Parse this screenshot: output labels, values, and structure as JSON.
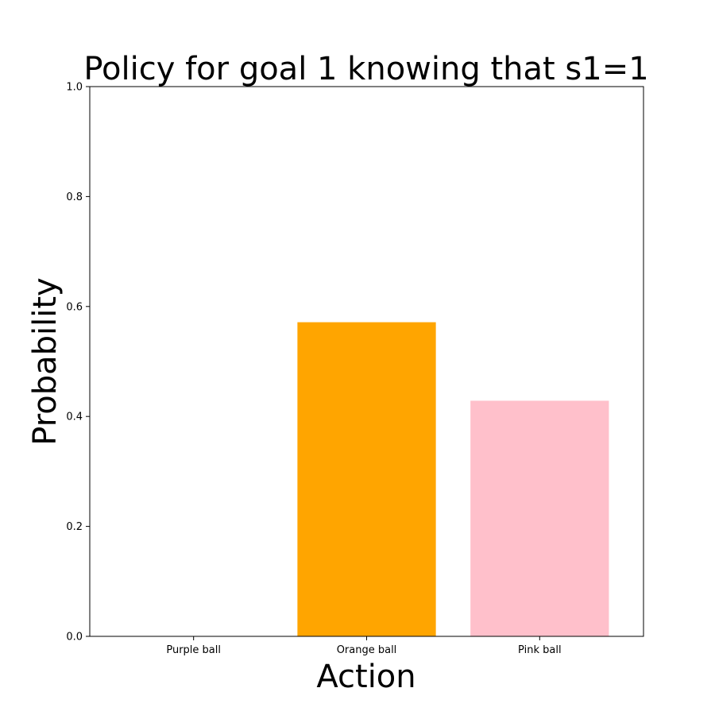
{
  "chart_data": {
    "type": "bar",
    "title": "Policy for goal 1 knowing that s1=1",
    "xlabel": "Action",
    "ylabel": "Probability",
    "categories": [
      "Purple ball",
      "Orange ball",
      "Pink ball"
    ],
    "values": [
      0.0,
      0.5714,
      0.4286
    ],
    "colors": [
      "#800080",
      "#FFA500",
      "#FFC0CB"
    ],
    "ylim": [
      0,
      1.0
    ],
    "yticks": [
      "0.0",
      "0.2",
      "0.4",
      "0.6",
      "0.8",
      "1.0"
    ],
    "grid": false,
    "legend": "none"
  }
}
